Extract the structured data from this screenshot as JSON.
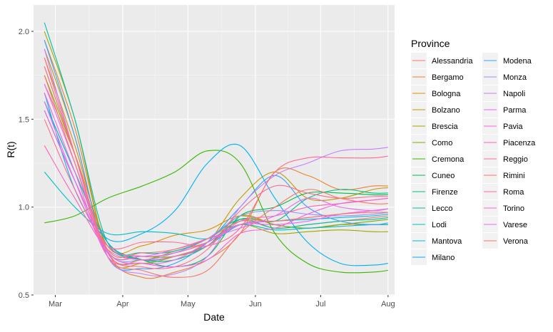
{
  "chart_data": {
    "type": "line",
    "title": "",
    "xlabel": "Date",
    "ylabel": "R(t)",
    "ylim": [
      0.5,
      2.15
    ],
    "yticks": [
      0.5,
      1.0,
      1.5,
      2.0
    ],
    "ytick_labels": [
      "0.5",
      "1.0",
      "1.5",
      "2.0"
    ],
    "x_range": [
      "2020-02-20",
      "2020-08-04"
    ],
    "xticks": [
      "2020-03-01",
      "2020-04-01",
      "2020-05-01",
      "2020-06-01",
      "2020-07-01",
      "2020-08-01"
    ],
    "xtick_labels": [
      "Mar",
      "Apr",
      "May",
      "Jun",
      "Jul",
      "Aug"
    ],
    "grid": true,
    "legend": {
      "title": "Province",
      "placement": "right",
      "columns": 2
    },
    "series": [
      {
        "name": "Alessandria",
        "color": "#F8766D",
        "x": [
          "2020-02-25",
          "2020-03-10",
          "2020-03-25",
          "2020-04-10",
          "2020-04-25",
          "2020-05-10",
          "2020-05-25",
          "2020-06-10",
          "2020-06-25",
          "2020-07-10",
          "2020-07-25",
          "2020-08-01"
        ],
        "values": [
          1.7,
          1.3,
          0.8,
          0.72,
          0.74,
          0.8,
          0.92,
          0.88,
          0.9,
          0.92,
          0.94,
          0.95
        ]
      },
      {
        "name": "Bergamo",
        "color": "#EA8331",
        "x": [
          "2020-02-25",
          "2020-03-10",
          "2020-03-25",
          "2020-04-10",
          "2020-04-25",
          "2020-05-10",
          "2020-05-25",
          "2020-06-10",
          "2020-06-25",
          "2020-07-10",
          "2020-07-25",
          "2020-08-01"
        ],
        "values": [
          1.95,
          1.45,
          0.75,
          0.6,
          0.63,
          0.7,
          0.85,
          1.2,
          1.18,
          1.1,
          1.12,
          1.12
        ]
      },
      {
        "name": "Bologna",
        "color": "#D89000",
        "x": [
          "2020-02-25",
          "2020-03-10",
          "2020-03-25",
          "2020-04-10",
          "2020-04-25",
          "2020-05-10",
          "2020-05-25",
          "2020-06-10",
          "2020-06-25",
          "2020-07-10",
          "2020-07-25",
          "2020-08-01"
        ],
        "values": [
          1.85,
          1.35,
          0.78,
          0.78,
          0.84,
          0.87,
          0.95,
          0.9,
          0.88,
          0.9,
          0.9,
          0.9
        ]
      },
      {
        "name": "Bolzano",
        "color": "#C09B00",
        "x": [
          "2020-02-25",
          "2020-03-10",
          "2020-03-25",
          "2020-04-10",
          "2020-04-25",
          "2020-05-10",
          "2020-05-25",
          "2020-06-10",
          "2020-06-25",
          "2020-07-10",
          "2020-07-25",
          "2020-08-01"
        ],
        "values": [
          1.9,
          1.4,
          0.72,
          0.68,
          0.72,
          0.8,
          1.05,
          1.2,
          1.05,
          1.05,
          1.1,
          1.11
        ]
      },
      {
        "name": "Brescia",
        "color": "#A3A500",
        "x": [
          "2020-02-25",
          "2020-03-10",
          "2020-03-25",
          "2020-04-10",
          "2020-04-25",
          "2020-05-10",
          "2020-05-25",
          "2020-06-10",
          "2020-06-25",
          "2020-07-10",
          "2020-07-25",
          "2020-08-01"
        ],
        "values": [
          2.0,
          1.5,
          0.75,
          0.7,
          0.75,
          0.8,
          0.9,
          0.85,
          0.86,
          0.87,
          0.86,
          0.86
        ]
      },
      {
        "name": "Como",
        "color": "#7CAE00",
        "x": [
          "2020-02-25",
          "2020-03-10",
          "2020-03-25",
          "2020-04-10",
          "2020-04-25",
          "2020-05-10",
          "2020-05-25",
          "2020-06-10",
          "2020-06-25",
          "2020-07-10",
          "2020-07-25",
          "2020-08-01"
        ],
        "values": [
          1.75,
          1.3,
          0.75,
          0.72,
          0.72,
          0.78,
          0.95,
          0.9,
          0.88,
          0.9,
          0.92,
          0.93
        ]
      },
      {
        "name": "Cremona",
        "color": "#39B600",
        "x": [
          "2020-02-25",
          "2020-03-10",
          "2020-03-25",
          "2020-04-10",
          "2020-04-25",
          "2020-05-10",
          "2020-05-25",
          "2020-06-10",
          "2020-06-25",
          "2020-07-10",
          "2020-07-25",
          "2020-08-01"
        ],
        "values": [
          0.91,
          0.95,
          1.05,
          1.12,
          1.2,
          1.32,
          1.25,
          0.85,
          0.68,
          0.63,
          0.63,
          0.64
        ]
      },
      {
        "name": "Cuneo",
        "color": "#00BB4E",
        "x": [
          "2020-02-25",
          "2020-03-10",
          "2020-03-25",
          "2020-04-10",
          "2020-04-25",
          "2020-05-10",
          "2020-05-25",
          "2020-06-10",
          "2020-06-25",
          "2020-07-10",
          "2020-07-25",
          "2020-08-01"
        ],
        "values": [
          1.6,
          1.2,
          0.8,
          0.7,
          0.66,
          0.72,
          0.95,
          1.0,
          1.08,
          1.08,
          1.07,
          1.07
        ]
      },
      {
        "name": "Firenze",
        "color": "#00BF7D",
        "x": [
          "2020-02-25",
          "2020-03-10",
          "2020-03-25",
          "2020-04-10",
          "2020-04-25",
          "2020-05-10",
          "2020-05-25",
          "2020-06-10",
          "2020-06-25",
          "2020-07-10",
          "2020-07-25",
          "2020-08-01"
        ],
        "values": [
          1.55,
          1.15,
          0.78,
          0.7,
          0.7,
          0.78,
          0.93,
          0.92,
          1.05,
          1.1,
          1.08,
          1.08
        ]
      },
      {
        "name": "Lecco",
        "color": "#00C1A3",
        "x": [
          "2020-02-25",
          "2020-03-10",
          "2020-03-25",
          "2020-04-10",
          "2020-04-25",
          "2020-05-10",
          "2020-05-25",
          "2020-06-10",
          "2020-06-25",
          "2020-07-10",
          "2020-07-25",
          "2020-08-01"
        ],
        "values": [
          2.05,
          1.5,
          0.8,
          0.74,
          0.75,
          0.82,
          0.93,
          0.88,
          0.9,
          0.92,
          0.93,
          0.94
        ]
      },
      {
        "name": "Lodi",
        "color": "#00BFC4",
        "x": [
          "2020-02-25",
          "2020-03-10",
          "2020-03-25",
          "2020-04-10",
          "2020-04-25",
          "2020-05-10",
          "2020-05-25",
          "2020-06-10",
          "2020-06-25",
          "2020-07-10",
          "2020-07-25",
          "2020-08-01"
        ],
        "values": [
          1.2,
          1.0,
          0.85,
          0.86,
          0.85,
          0.82,
          0.9,
          0.87,
          0.88,
          0.89,
          0.9,
          0.9
        ]
      },
      {
        "name": "Mantova",
        "color": "#00BAE0",
        "x": [
          "2020-02-25",
          "2020-03-10",
          "2020-03-25",
          "2020-04-10",
          "2020-04-25",
          "2020-05-10",
          "2020-05-25",
          "2020-06-10",
          "2020-06-25",
          "2020-07-10",
          "2020-07-25",
          "2020-08-01"
        ],
        "values": [
          1.6,
          1.2,
          0.8,
          0.7,
          0.72,
          0.78,
          0.9,
          0.92,
          0.93,
          0.94,
          0.95,
          0.96
        ]
      },
      {
        "name": "Milano",
        "color": "#00B0F6",
        "x": [
          "2020-02-25",
          "2020-03-10",
          "2020-03-25",
          "2020-04-10",
          "2020-04-25",
          "2020-05-10",
          "2020-05-25",
          "2020-06-10",
          "2020-06-25",
          "2020-07-10",
          "2020-07-25",
          "2020-08-01"
        ],
        "values": [
          1.65,
          1.1,
          0.82,
          0.85,
          0.98,
          1.25,
          1.35,
          1.05,
          0.8,
          0.68,
          0.67,
          0.68
        ]
      },
      {
        "name": "Modena",
        "color": "#35A2FF",
        "x": [
          "2020-02-25",
          "2020-03-10",
          "2020-03-25",
          "2020-04-10",
          "2020-04-25",
          "2020-05-10",
          "2020-05-25",
          "2020-06-10",
          "2020-06-25",
          "2020-07-10",
          "2020-07-25",
          "2020-08-01"
        ],
        "values": [
          1.95,
          1.4,
          0.72,
          0.65,
          0.68,
          0.8,
          1.0,
          1.18,
          1.0,
          0.92,
          0.9,
          0.91
        ]
      },
      {
        "name": "Monza",
        "color": "#9590FF",
        "x": [
          "2020-02-25",
          "2020-03-10",
          "2020-03-25",
          "2020-04-10",
          "2020-04-25",
          "2020-05-10",
          "2020-05-25",
          "2020-06-10",
          "2020-06-25",
          "2020-07-10",
          "2020-07-25",
          "2020-08-01"
        ],
        "values": [
          1.8,
          1.3,
          0.75,
          0.7,
          0.74,
          0.82,
          0.95,
          0.98,
          0.96,
          0.95,
          0.96,
          0.97
        ]
      },
      {
        "name": "Napoli",
        "color": "#C77CFF",
        "x": [
          "2020-02-25",
          "2020-03-10",
          "2020-03-25",
          "2020-04-10",
          "2020-04-25",
          "2020-05-10",
          "2020-05-25",
          "2020-06-10",
          "2020-06-25",
          "2020-07-10",
          "2020-07-25",
          "2020-08-01"
        ],
        "values": [
          1.9,
          1.3,
          0.72,
          0.62,
          0.62,
          0.72,
          1.0,
          1.18,
          1.25,
          1.32,
          1.33,
          1.34
        ]
      },
      {
        "name": "Parma",
        "color": "#E76BF3",
        "x": [
          "2020-02-25",
          "2020-03-10",
          "2020-03-25",
          "2020-04-10",
          "2020-04-25",
          "2020-05-10",
          "2020-05-25",
          "2020-06-10",
          "2020-06-25",
          "2020-07-10",
          "2020-07-25",
          "2020-08-01"
        ],
        "values": [
          1.7,
          1.25,
          0.75,
          0.68,
          0.7,
          0.8,
          0.9,
          0.9,
          0.92,
          0.96,
          0.98,
          0.99
        ]
      },
      {
        "name": "Pavia",
        "color": "#FA62DB",
        "x": [
          "2020-02-25",
          "2020-03-10",
          "2020-03-25",
          "2020-04-10",
          "2020-04-25",
          "2020-05-10",
          "2020-05-25",
          "2020-06-10",
          "2020-06-25",
          "2020-07-10",
          "2020-07-25",
          "2020-08-01"
        ],
        "values": [
          1.55,
          1.15,
          0.78,
          0.72,
          0.74,
          0.8,
          0.9,
          0.92,
          0.94,
          0.96,
          0.98,
          0.99
        ]
      },
      {
        "name": "Piacenza",
        "color": "#FF62BC",
        "x": [
          "2020-02-25",
          "2020-03-10",
          "2020-03-25",
          "2020-04-10",
          "2020-04-25",
          "2020-05-10",
          "2020-05-25",
          "2020-06-10",
          "2020-06-25",
          "2020-07-10",
          "2020-07-25",
          "2020-08-01"
        ],
        "values": [
          1.35,
          1.05,
          0.76,
          0.7,
          0.72,
          0.78,
          0.92,
          0.95,
          1.0,
          1.02,
          1.04,
          1.05
        ]
      },
      {
        "name": "Reggio",
        "color": "#FF6C91",
        "x": [
          "2020-02-25",
          "2020-03-10",
          "2020-03-25",
          "2020-04-10",
          "2020-04-25",
          "2020-05-10",
          "2020-05-25",
          "2020-06-10",
          "2020-06-25",
          "2020-07-10",
          "2020-07-25",
          "2020-08-01"
        ],
        "values": [
          1.85,
          1.3,
          0.74,
          0.66,
          0.66,
          0.76,
          0.98,
          1.12,
          1.08,
          1.05,
          1.06,
          1.06
        ]
      },
      {
        "name": "Rimini",
        "color": "#F8766D",
        "x": [
          "2020-02-25",
          "2020-03-10",
          "2020-03-25",
          "2020-04-10",
          "2020-04-25",
          "2020-05-10",
          "2020-05-25",
          "2020-06-10",
          "2020-06-25",
          "2020-07-10",
          "2020-07-25",
          "2020-08-01"
        ],
        "values": [
          1.75,
          1.25,
          0.72,
          0.64,
          0.6,
          0.64,
          0.85,
          1.0,
          1.1,
          1.05,
          1.02,
          1.02
        ]
      },
      {
        "name": "Roma",
        "color": "#FF6C91",
        "x": [
          "2020-02-25",
          "2020-03-10",
          "2020-03-25",
          "2020-04-10",
          "2020-04-25",
          "2020-05-10",
          "2020-05-25",
          "2020-06-10",
          "2020-06-25",
          "2020-07-10",
          "2020-07-25",
          "2020-08-01"
        ],
        "values": [
          1.5,
          1.1,
          0.78,
          0.8,
          0.8,
          0.78,
          0.88,
          1.2,
          1.28,
          1.28,
          1.28,
          1.29
        ]
      },
      {
        "name": "Torino",
        "color": "#FA62DB",
        "x": [
          "2020-02-25",
          "2020-03-10",
          "2020-03-25",
          "2020-04-10",
          "2020-04-25",
          "2020-05-10",
          "2020-05-25",
          "2020-06-10",
          "2020-06-25",
          "2020-07-10",
          "2020-07-25",
          "2020-08-01"
        ],
        "values": [
          1.65,
          1.2,
          0.72,
          0.68,
          0.66,
          0.7,
          0.85,
          0.88,
          0.96,
          1.02,
          1.04,
          1.05
        ]
      },
      {
        "name": "Varese",
        "color": "#E76BF3",
        "x": [
          "2020-02-25",
          "2020-03-10",
          "2020-03-25",
          "2020-04-10",
          "2020-04-25",
          "2020-05-10",
          "2020-05-25",
          "2020-06-10",
          "2020-06-25",
          "2020-07-10",
          "2020-07-25",
          "2020-08-01"
        ],
        "values": [
          1.6,
          1.15,
          0.74,
          0.72,
          0.76,
          0.82,
          0.88,
          0.95,
          1.05,
          1.0,
          0.98,
          0.99
        ]
      },
      {
        "name": "Verona",
        "color": "#F8766D",
        "x": [
          "2020-02-25",
          "2020-03-10",
          "2020-03-25",
          "2020-04-10",
          "2020-04-25",
          "2020-05-10",
          "2020-05-25",
          "2020-06-10",
          "2020-06-25",
          "2020-07-10",
          "2020-07-25",
          "2020-08-01"
        ],
        "values": [
          1.8,
          1.3,
          0.76,
          0.74,
          0.76,
          0.82,
          0.92,
          0.92,
          0.94,
          0.96,
          0.97,
          0.97
        ]
      }
    ]
  }
}
